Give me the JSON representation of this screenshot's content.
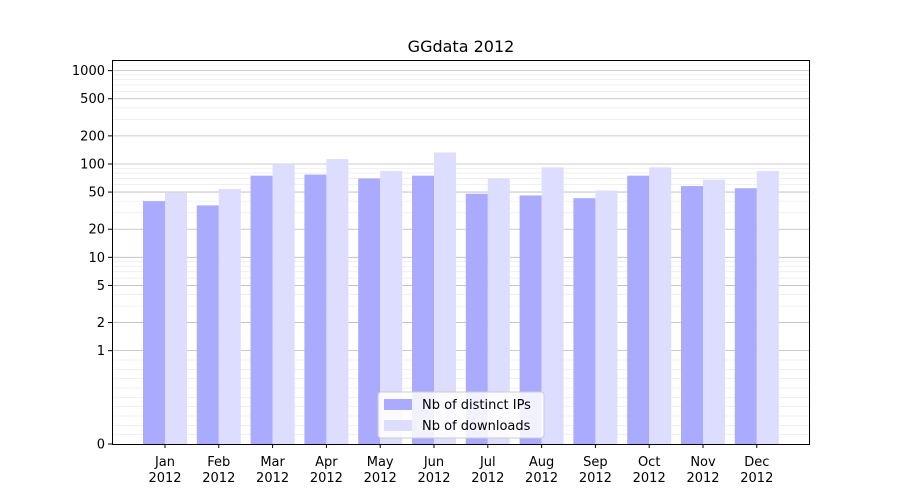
{
  "chart_data": {
    "type": "bar",
    "title": "GGdata 2012",
    "xlabel": "",
    "ylabel": "",
    "y_scale": "symlog",
    "ylim": [
      0,
      1300
    ],
    "y_ticks": [
      0,
      1,
      2,
      5,
      10,
      20,
      50,
      100,
      200,
      500,
      1000
    ],
    "y_tick_labels": [
      "0",
      "1",
      "2",
      "5",
      "10",
      "20",
      "50",
      "100",
      "200",
      "500",
      "1000"
    ],
    "categories": [
      "Jan\n2012",
      "Feb\n2012",
      "Mar\n2012",
      "Apr\n2012",
      "May\n2012",
      "Jun\n2012",
      "Jul\n2012",
      "Aug\n2012",
      "Sep\n2012",
      "Oct\n2012",
      "Nov\n2012",
      "Dec\n2012"
    ],
    "category_months": [
      "Jan",
      "Feb",
      "Mar",
      "Apr",
      "May",
      "Jun",
      "Jul",
      "Aug",
      "Sep",
      "Oct",
      "Nov",
      "Dec"
    ],
    "category_year": "2012",
    "series": [
      {
        "name": "Nb of distinct IPs",
        "color": "#aaaaff",
        "values": [
          40,
          36,
          75,
          77,
          70,
          75,
          48,
          46,
          43,
          75,
          58,
          55
        ]
      },
      {
        "name": "Nb of downloads",
        "color": "#ddddff",
        "values": [
          49,
          54,
          100,
          113,
          84,
          133,
          70,
          92,
          52,
          92,
          68,
          84
        ]
      }
    ],
    "grid": true,
    "legend_position": "bottom-center"
  }
}
